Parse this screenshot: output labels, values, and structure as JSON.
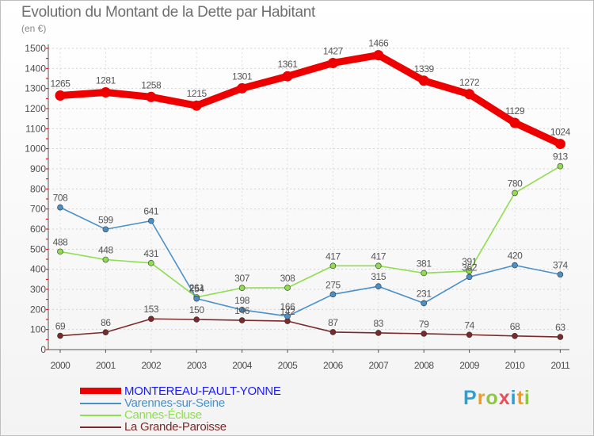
{
  "title": "Evolution du Montant de la Dette par Habitant",
  "subtitle": "(en €)",
  "logo": {
    "text": "Proxiti",
    "colors": [
      "#2aa0d8",
      "#f39a1e",
      "#8dc63f",
      "#e94e5b",
      "#2aa0d8",
      "#f39a1e",
      "#8dc63f"
    ]
  },
  "chart_data": {
    "type": "line",
    "title": "Evolution du Montant de la Dette par Habitant",
    "ylabel": "(en €)",
    "xlabel": "",
    "x": [
      "2000",
      "2001",
      "2002",
      "2003",
      "2004",
      "2005",
      "2006",
      "2007",
      "2008",
      "2009",
      "2010",
      "2011"
    ],
    "ylim": [
      0,
      1500
    ],
    "yticks": [
      0,
      100,
      200,
      300,
      400,
      500,
      600,
      700,
      800,
      900,
      1000,
      1100,
      1200,
      1300,
      1400,
      1500
    ],
    "grid": true,
    "legend_position": "bottom-left",
    "series": [
      {
        "name": "MONTEREAU-FAULT-YONNE",
        "values": [
          1265,
          1281,
          1258,
          1215,
          1301,
          1361,
          1427,
          1466,
          1339,
          1272,
          1129,
          1024
        ],
        "color": "#ee0000",
        "legend_text_color": "#1a1aff",
        "bold": true
      },
      {
        "name": "Varennes-sur-Seine",
        "values": [
          708,
          599,
          641,
          254,
          198,
          166,
          275,
          315,
          231,
          362,
          420,
          374
        ],
        "color": "#4a90c8",
        "legend_text_color": "#4a90c8",
        "bold": false
      },
      {
        "name": "Cannes-Écluse",
        "values": [
          488,
          448,
          431,
          261,
          307,
          308,
          417,
          417,
          381,
          391,
          780,
          913
        ],
        "color": "#8ede4e",
        "legend_text_color": "#8ede4e",
        "bold": false
      },
      {
        "name": "La Grande-Paroisse",
        "values": [
          69,
          86,
          153,
          150,
          146,
          142,
          87,
          83,
          79,
          74,
          68,
          63
        ],
        "color": "#7a2a2a",
        "legend_text_color": "#7a2a2a",
        "bold": false
      }
    ]
  }
}
